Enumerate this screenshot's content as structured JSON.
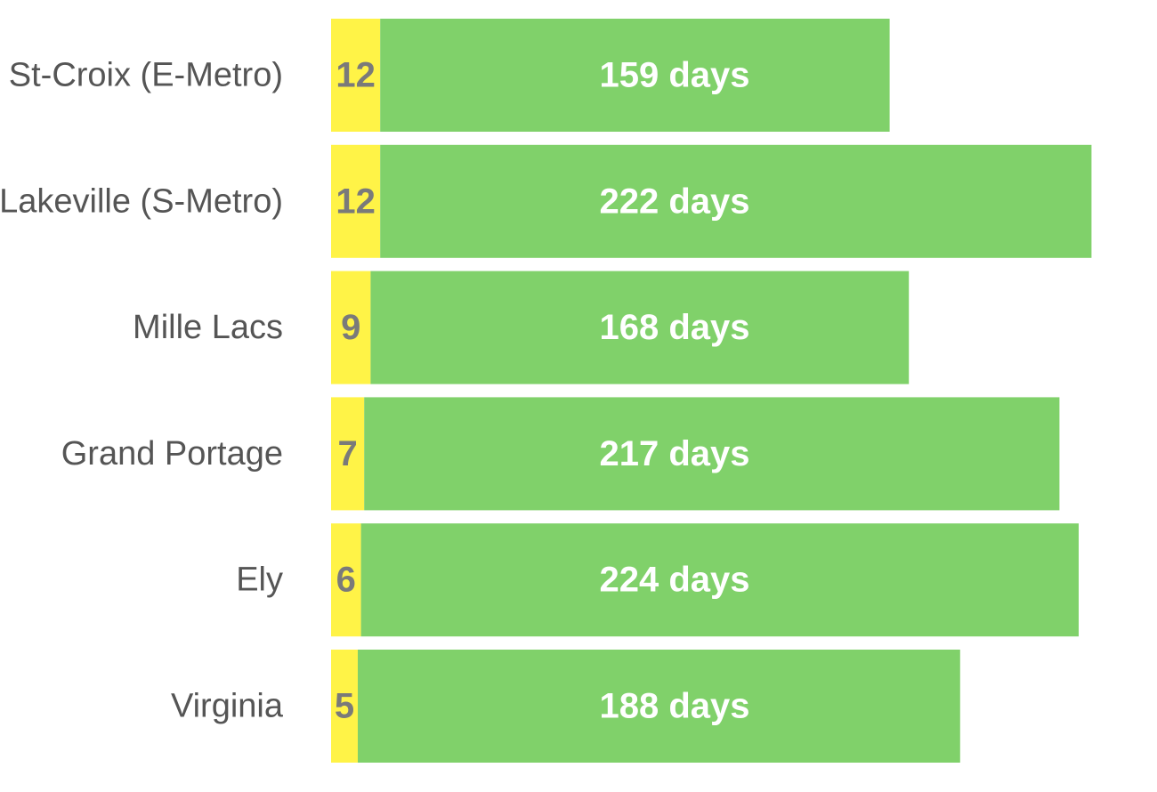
{
  "chart_data": {
    "type": "bar",
    "orientation": "horizontal",
    "stacked": true,
    "title": "",
    "xlabel": "",
    "ylabel": "",
    "grid": false,
    "legend": "none",
    "categories": [
      "St-Croix (E-Metro)",
      "Lakeville (S-Metro)",
      "Mille Lacs",
      "Grand Portage",
      "Ely",
      "Virginia"
    ],
    "series": [
      {
        "color": "#fff347",
        "label_color": "#7a7a7a",
        "values": [
          12,
          12,
          9,
          7,
          6,
          5
        ],
        "labels": [
          "12",
          "12",
          "9",
          "7",
          "6",
          "5"
        ]
      },
      {
        "color": "#80d16a",
        "label_color": "#ffffff",
        "values": [
          159,
          222,
          168,
          217,
          224,
          188
        ],
        "labels": [
          "159 days",
          "222 days",
          "168 days",
          "217 days",
          "224 days",
          "188 days"
        ]
      }
    ]
  }
}
